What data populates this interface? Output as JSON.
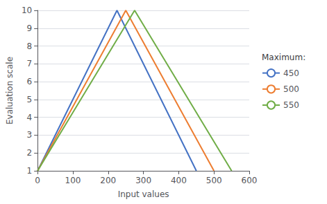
{
  "chart_data": {
    "type": "line",
    "xlabel": "Input values",
    "ylabel": "Evaluation scale",
    "legend_title": "Maximum:",
    "legend": "right",
    "grid": "y",
    "series": [
      {
        "name": "450",
        "color": "#4472C4",
        "x": [
          0,
          225,
          450
        ],
        "values": [
          1,
          10,
          1
        ]
      },
      {
        "name": "500",
        "color": "#ED7D31",
        "x": [
          0,
          250,
          500
        ],
        "values": [
          1,
          10,
          1
        ]
      },
      {
        "name": "550",
        "color": "#70AD47",
        "x": [
          0,
          275,
          550
        ],
        "values": [
          1,
          10,
          1
        ]
      }
    ],
    "xlim": [
      0,
      600
    ],
    "xticks": [
      0,
      100,
      200,
      300,
      400,
      500,
      600
    ],
    "ylim": [
      1,
      10
    ],
    "yticks": [
      1,
      2,
      3,
      4,
      5,
      6,
      7,
      8,
      9,
      10
    ]
  }
}
